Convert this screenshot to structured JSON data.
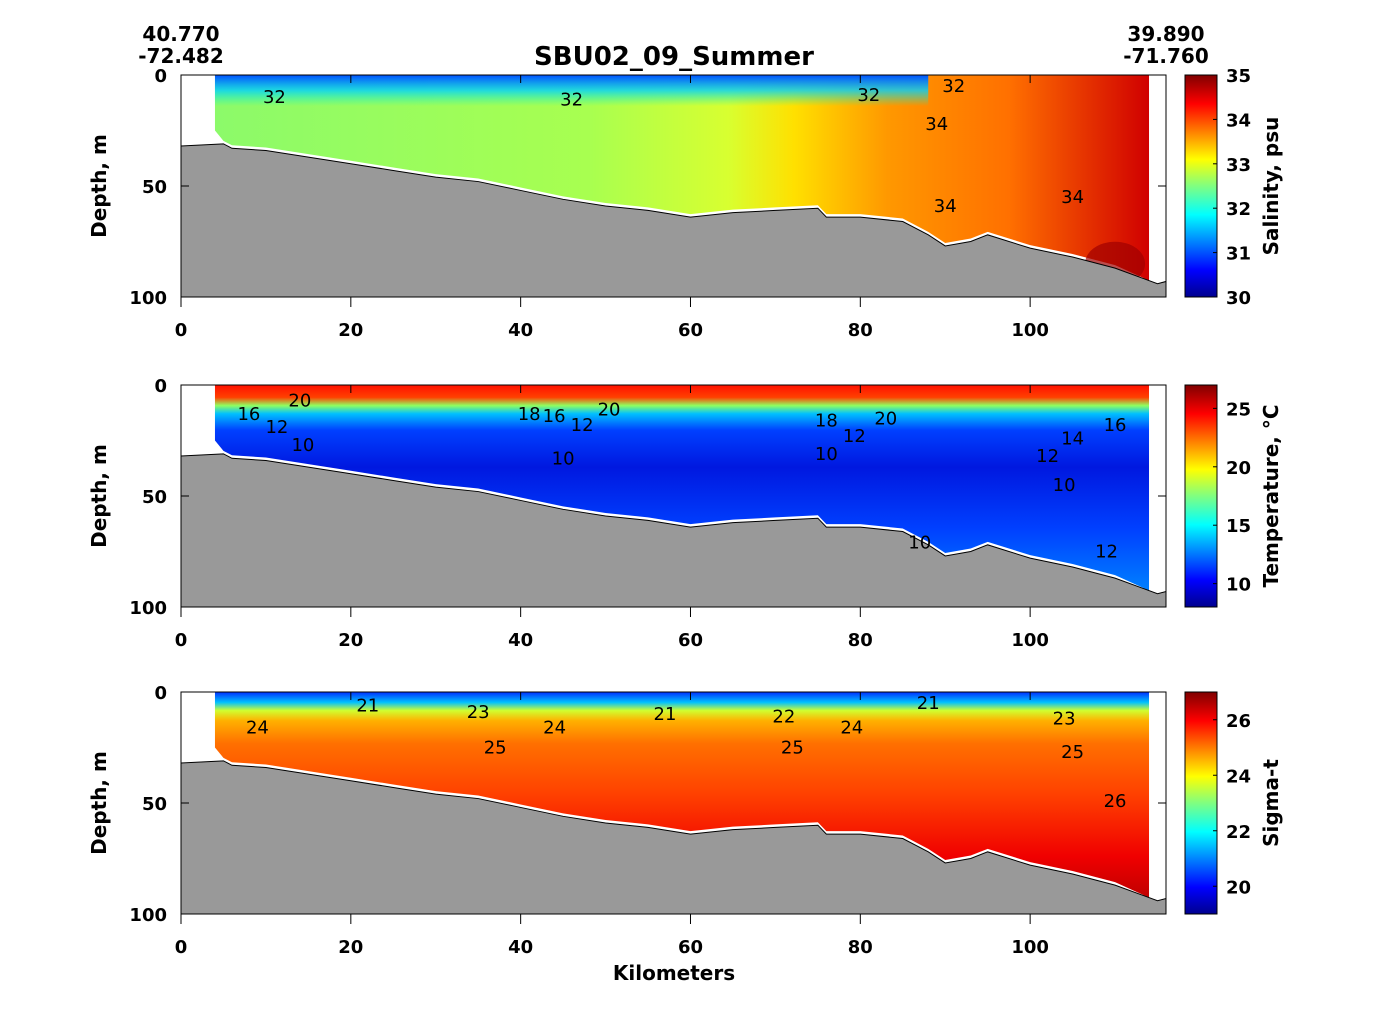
{
  "chart_data": {
    "type": "heatmap",
    "title": "SBU02_09_Summer",
    "start_station": {
      "lat": "40.770",
      "lon": "-72.482"
    },
    "end_station": {
      "lat": "39.890",
      "lon": "-71.760"
    },
    "xlabel": "Kilometers",
    "xlim": [
      0,
      116
    ],
    "xticks": [
      "0",
      "20",
      "40",
      "60",
      "80",
      "100"
    ],
    "data_extent_km": [
      4,
      114
    ],
    "bathymetry": {
      "km": [
        0,
        5,
        6,
        10,
        15,
        20,
        25,
        30,
        35,
        40,
        45,
        50,
        55,
        60,
        65,
        70,
        75,
        76,
        80,
        85,
        88,
        90,
        93,
        95,
        100,
        105,
        110,
        115,
        116
      ],
      "depth": [
        32,
        31,
        33,
        34,
        37,
        40,
        43,
        46,
        48,
        52,
        56,
        59,
        61,
        64,
        62,
        61,
        60,
        64,
        64,
        66,
        72,
        77,
        75,
        72,
        78,
        82,
        87,
        94,
        93
      ]
    },
    "panels": [
      {
        "variable": "salinity",
        "ylabel": "Depth, m",
        "ylim": [
          0,
          100
        ],
        "yticks": [
          "0",
          "50",
          "100"
        ],
        "colorbar_label": "Salinity, psu",
        "colorbar_range": [
          30,
          35
        ],
        "colorbar_ticks": [
          "30",
          "31",
          "32",
          "33",
          "34",
          "35"
        ],
        "contour_labels": [
          {
            "text": "32",
            "km": 11,
            "depth": 10
          },
          {
            "text": "32",
            "km": 46,
            "depth": 11
          },
          {
            "text": "32",
            "km": 81,
            "depth": 9
          },
          {
            "text": "32",
            "km": 91,
            "depth": 5
          },
          {
            "text": "34",
            "km": 89,
            "depth": 22
          },
          {
            "text": "34",
            "km": 90,
            "depth": 59
          },
          {
            "text": "34",
            "km": 105,
            "depth": 55
          }
        ]
      },
      {
        "variable": "temperature",
        "ylabel": "Depth, m",
        "ylim": [
          0,
          100
        ],
        "yticks": [
          "0",
          "50",
          "100"
        ],
        "colorbar_label": "Temperature, °C",
        "colorbar_range": [
          8,
          27
        ],
        "colorbar_ticks": [
          "10",
          "15",
          "20",
          "25"
        ],
        "contour_labels": [
          {
            "text": "20",
            "km": 14,
            "depth": 7
          },
          {
            "text": "16",
            "km": 8,
            "depth": 13
          },
          {
            "text": "12",
            "km": 8,
            "depth": 19
          },
          {
            "text": "10",
            "km": 12,
            "depth": 27
          },
          {
            "text": "18",
            "km": 41,
            "depth": 13
          },
          {
            "text": "16",
            "km": 43,
            "depth": 14
          },
          {
            "text": "12",
            "km": 43,
            "depth": 18
          },
          {
            "text": "20",
            "km": 49,
            "depth": 11
          },
          {
            "text": "10",
            "km": 45,
            "depth": 33
          },
          {
            "text": "18",
            "km": 76,
            "depth": 16
          },
          {
            "text": "12",
            "km": 76,
            "depth": 23
          },
          {
            "text": "10",
            "km": 76,
            "depth": 31
          },
          {
            "text": "20",
            "km": 83,
            "depth": 15
          },
          {
            "text": "14",
            "km": 105,
            "depth": 24
          },
          {
            "text": "16",
            "km": 110,
            "depth": 18
          },
          {
            "text": "12",
            "km": 103,
            "depth": 32
          },
          {
            "text": "10",
            "km": 104,
            "depth": 45
          },
          {
            "text": "10",
            "km": 87,
            "depth": 71
          },
          {
            "text": "12",
            "km": 109,
            "depth": 75
          }
        ]
      },
      {
        "variable": "sigma-t",
        "ylabel": "Depth, m",
        "ylim": [
          0,
          100
        ],
        "yticks": [
          "0",
          "50",
          "100"
        ],
        "colorbar_label": "Sigma-t",
        "colorbar_range": [
          19,
          27
        ],
        "colorbar_ticks": [
          "20",
          "22",
          "24",
          "26"
        ],
        "contour_labels": [
          {
            "text": "21",
            "km": 22,
            "depth": 6
          },
          {
            "text": "23",
            "km": 35,
            "depth": 9
          },
          {
            "text": "24",
            "km": 9,
            "depth": 16
          },
          {
            "text": "24",
            "km": 44,
            "depth": 16
          },
          {
            "text": "25",
            "km": 37,
            "depth": 25
          },
          {
            "text": "21",
            "km": 57,
            "depth": 10
          },
          {
            "text": "22",
            "km": 71,
            "depth": 11
          },
          {
            "text": "24",
            "km": 79,
            "depth": 16
          },
          {
            "text": "25",
            "km": 72,
            "depth": 25
          },
          {
            "text": "21",
            "km": 88,
            "depth": 5
          },
          {
            "text": "23",
            "km": 104,
            "depth": 12
          },
          {
            "text": "25",
            "km": 105,
            "depth": 27
          },
          {
            "text": "26",
            "km": 110,
            "depth": 49
          }
        ]
      }
    ]
  }
}
